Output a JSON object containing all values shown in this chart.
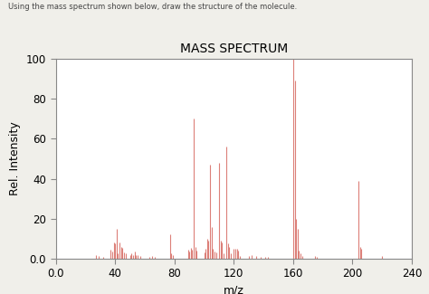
{
  "title": "MASS SPECTRUM",
  "xlabel": "m/z",
  "ylabel": "Rel. Intensity",
  "xlim": [
    0.0,
    240
  ],
  "ylim": [
    0.0,
    100
  ],
  "xticks": [
    0.0,
    40,
    80,
    120,
    160,
    200,
    240
  ],
  "yticks": [
    0.0,
    20,
    40,
    60,
    80,
    100
  ],
  "annotation": "Using the mass spectrum shown below, draw the structure of the molecule.",
  "bar_color": "#d9726a",
  "bg_color": "#ffffff",
  "fig_bg": "#f0efea",
  "peaks": [
    [
      27,
      2.0
    ],
    [
      29,
      1.5
    ],
    [
      32,
      1.0
    ],
    [
      37,
      4.5
    ],
    [
      38,
      3.5
    ],
    [
      39,
      8.0
    ],
    [
      40,
      7.5
    ],
    [
      41,
      15.0
    ],
    [
      42,
      2.5
    ],
    [
      43,
      8.0
    ],
    [
      44,
      6.0
    ],
    [
      45,
      5.5
    ],
    [
      46,
      3.0
    ],
    [
      47,
      2.5
    ],
    [
      50,
      2.0
    ],
    [
      51,
      2.5
    ],
    [
      52,
      2.0
    ],
    [
      53,
      3.5
    ],
    [
      54,
      2.0
    ],
    [
      55,
      2.0
    ],
    [
      57,
      1.5
    ],
    [
      63,
      1.0
    ],
    [
      65,
      1.5
    ],
    [
      67,
      1.0
    ],
    [
      77,
      12.0
    ],
    [
      78,
      2.5
    ],
    [
      79,
      2.0
    ],
    [
      89,
      4.5
    ],
    [
      90,
      3.5
    ],
    [
      91,
      5.5
    ],
    [
      92,
      4.5
    ],
    [
      93,
      70.0
    ],
    [
      94,
      6.0
    ],
    [
      95,
      4.0
    ],
    [
      100,
      3.0
    ],
    [
      101,
      5.0
    ],
    [
      102,
      10.0
    ],
    [
      103,
      9.0
    ],
    [
      104,
      47.0
    ],
    [
      105,
      16.0
    ],
    [
      106,
      5.0
    ],
    [
      107,
      3.5
    ],
    [
      108,
      3.0
    ],
    [
      110,
      48.0
    ],
    [
      111,
      9.0
    ],
    [
      112,
      8.0
    ],
    [
      113,
      2.5
    ],
    [
      115,
      56.0
    ],
    [
      116,
      7.5
    ],
    [
      117,
      6.0
    ],
    [
      118,
      2.5
    ],
    [
      120,
      5.0
    ],
    [
      121,
      5.0
    ],
    [
      122,
      5.0
    ],
    [
      123,
      4.0
    ],
    [
      124,
      1.5
    ],
    [
      130,
      1.5
    ],
    [
      132,
      2.0
    ],
    [
      135,
      1.5
    ],
    [
      138,
      1.0
    ],
    [
      141,
      1.0
    ],
    [
      143,
      1.0
    ],
    [
      160,
      100.0
    ],
    [
      161,
      89.0
    ],
    [
      162,
      20.0
    ],
    [
      163,
      15.0
    ],
    [
      164,
      4.0
    ],
    [
      165,
      2.5
    ],
    [
      166,
      1.5
    ],
    [
      175,
      1.5
    ],
    [
      176,
      1.0
    ],
    [
      204,
      39.0
    ],
    [
      205,
      6.0
    ],
    [
      206,
      5.0
    ],
    [
      220,
      1.5
    ]
  ]
}
